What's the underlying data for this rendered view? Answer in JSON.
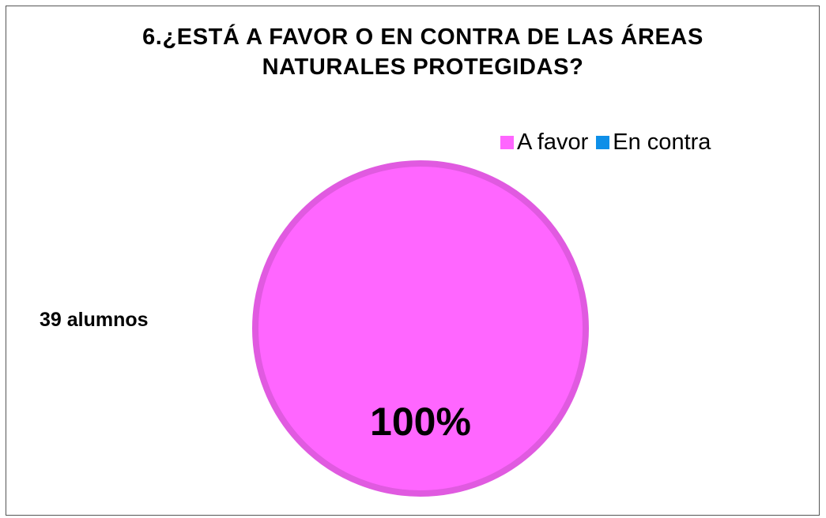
{
  "chart_data": {
    "type": "pie",
    "title_lines": [
      "6.¿ESTÁ A FAVOR O EN CONTRA DE LAS ÁREAS",
      "NATURALES PROTEGIDAS?"
    ],
    "categories": [
      "A favor",
      "En contra"
    ],
    "values": [
      100,
      0
    ],
    "value_labels": [
      "100%",
      ""
    ],
    "colors": [
      "#FF66FF",
      "#0E8FE8"
    ],
    "annotation": "39 alumnos",
    "legend_position": "top-right"
  }
}
